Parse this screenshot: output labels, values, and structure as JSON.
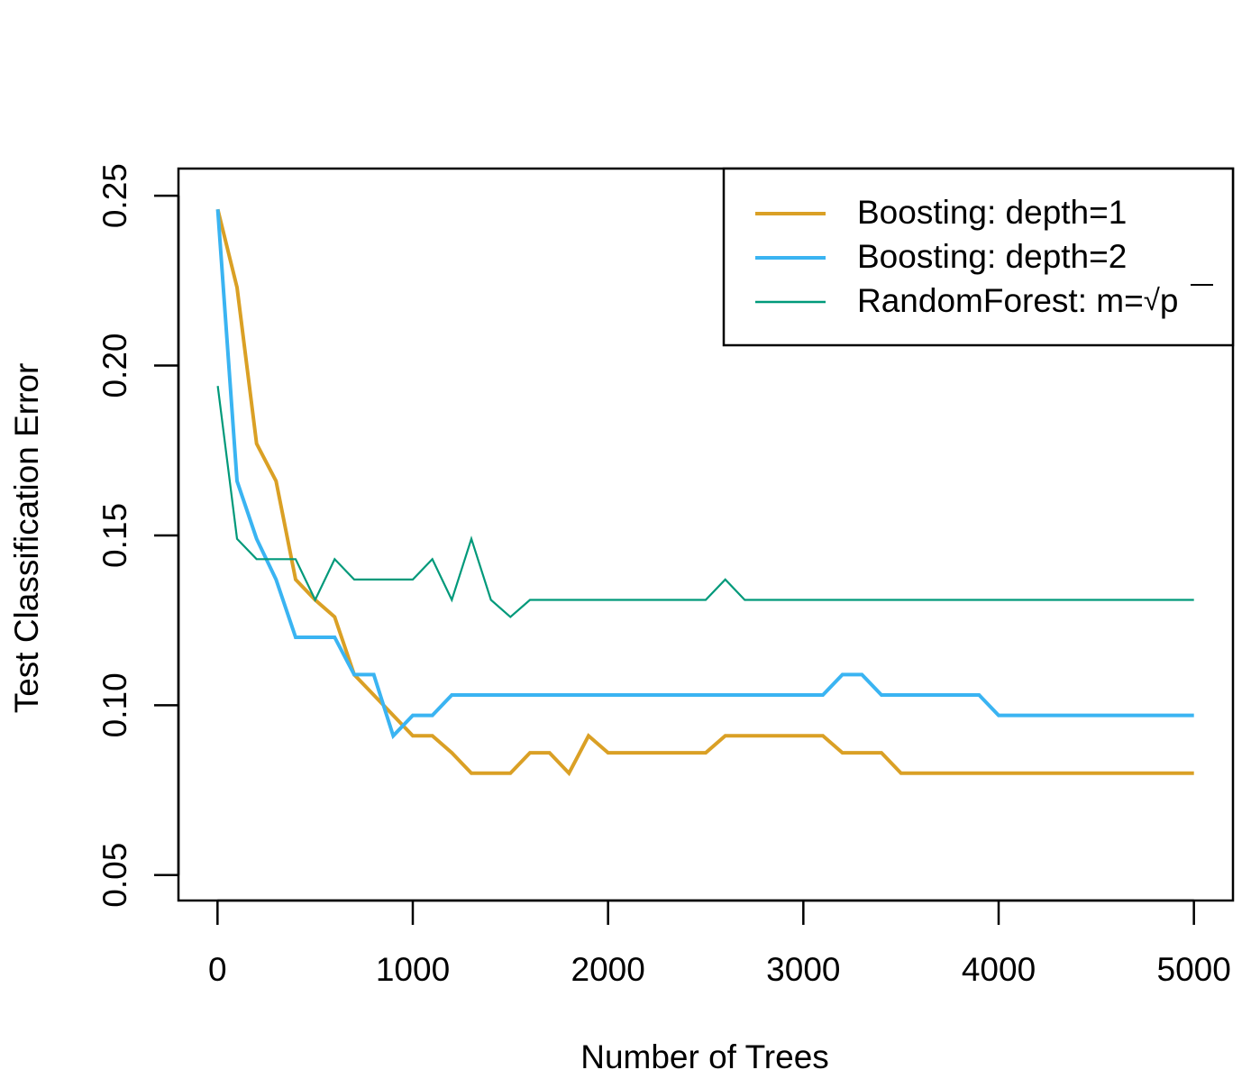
{
  "chart_data": {
    "type": "line",
    "title": "",
    "xlabel": "Number of Trees",
    "ylabel": "Test Classification Error",
    "xlim": [
      -200,
      5200
    ],
    "ylim": [
      0.0425,
      0.258
    ],
    "xticks": [
      0,
      1000,
      2000,
      3000,
      4000,
      5000
    ],
    "xtick_labels": [
      "0",
      "1000",
      "2000",
      "3000",
      "4000",
      "5000"
    ],
    "yticks": [
      0.05,
      0.1,
      0.15,
      0.2,
      0.25
    ],
    "ytick_labels": [
      "0.05",
      "0.10",
      "0.15",
      "0.20",
      "0.25"
    ],
    "grid": false,
    "legend_position": "top-right",
    "x": [
      1,
      100,
      200,
      300,
      400,
      500,
      600,
      700,
      800,
      900,
      1000,
      1100,
      1200,
      1300,
      1400,
      1500,
      1600,
      1700,
      1800,
      1900,
      2000,
      2100,
      2200,
      2300,
      2400,
      2500,
      2600,
      2700,
      2800,
      2900,
      3000,
      3100,
      3200,
      3300,
      3400,
      3500,
      3600,
      3700,
      3800,
      3900,
      4000,
      4100,
      4200,
      4300,
      4400,
      4500,
      4600,
      4700,
      4800,
      4900,
      5000
    ],
    "series": [
      {
        "name": "Boosting: depth=1",
        "color": "#DAA025",
        "stroke": "thick",
        "values": [
          0.246,
          0.223,
          0.177,
          0.166,
          0.137,
          0.131,
          0.126,
          0.109,
          0.103,
          0.097,
          0.091,
          0.091,
          0.086,
          0.08,
          0.08,
          0.08,
          0.086,
          0.086,
          0.08,
          0.091,
          0.086,
          0.086,
          0.086,
          0.086,
          0.086,
          0.086,
          0.091,
          0.091,
          0.091,
          0.091,
          0.091,
          0.091,
          0.086,
          0.086,
          0.086,
          0.08,
          0.08,
          0.08,
          0.08,
          0.08,
          0.08,
          0.08,
          0.08,
          0.08,
          0.08,
          0.08,
          0.08,
          0.08,
          0.08,
          0.08,
          0.08
        ]
      },
      {
        "name": "Boosting: depth=2",
        "color": "#3AB4F2",
        "stroke": "thick",
        "values": [
          0.246,
          0.166,
          0.149,
          0.137,
          0.12,
          0.12,
          0.12,
          0.109,
          0.109,
          0.091,
          0.097,
          0.097,
          0.103,
          0.103,
          0.103,
          0.103,
          0.103,
          0.103,
          0.103,
          0.103,
          0.103,
          0.103,
          0.103,
          0.103,
          0.103,
          0.103,
          0.103,
          0.103,
          0.103,
          0.103,
          0.103,
          0.103,
          0.109,
          0.109,
          0.103,
          0.103,
          0.103,
          0.103,
          0.103,
          0.103,
          0.097,
          0.097,
          0.097,
          0.097,
          0.097,
          0.097,
          0.097,
          0.097,
          0.097,
          0.097,
          0.097
        ]
      },
      {
        "name": "RandomForest: m=",
        "name_sqrt_symbol": "√",
        "name_sqrt_arg": "p",
        "color": "#00997A",
        "stroke": "thin",
        "values": [
          0.194,
          0.149,
          0.143,
          0.143,
          0.143,
          0.131,
          0.143,
          0.137,
          0.137,
          0.137,
          0.137,
          0.143,
          0.131,
          0.149,
          0.131,
          0.126,
          0.131,
          0.131,
          0.131,
          0.131,
          0.131,
          0.131,
          0.131,
          0.131,
          0.131,
          0.131,
          0.137,
          0.131,
          0.131,
          0.131,
          0.131,
          0.131,
          0.131,
          0.131,
          0.131,
          0.131,
          0.131,
          0.131,
          0.131,
          0.131,
          0.131,
          0.131,
          0.131,
          0.131,
          0.131,
          0.131,
          0.131,
          0.131,
          0.131,
          0.131,
          0.131
        ]
      }
    ]
  }
}
